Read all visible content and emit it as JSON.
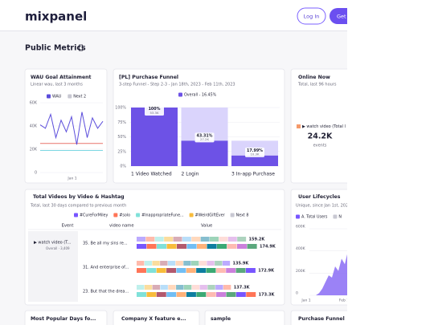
{
  "header": {
    "logo": "mixpanel",
    "login": "Log In",
    "signup": "Get"
  },
  "page_title": "Public Metrics",
  "wau": {
    "title": "WAU Goal Attainment",
    "subtitle": "Linear wau, last 3 months",
    "legend": [
      {
        "name": "WAU",
        "color": "#5b4ddb"
      },
      {
        "name": "Next 2",
        "color": "#c8c8d2"
      }
    ],
    "color": "#5b4ddb",
    "values": [
      41000,
      38000,
      50000,
      30000,
      45000,
      35000,
      48000,
      24000,
      52000,
      30000,
      47000,
      38000,
      44000
    ],
    "reference_lines": [
      {
        "value": 25000,
        "color": "#e8736b"
      },
      {
        "value": 19000,
        "color": "#7dd8e3"
      }
    ],
    "ylim": [
      0,
      60000
    ],
    "yticks": [
      {
        "value": 60000,
        "label": "60K"
      },
      {
        "value": 40000,
        "label": "40K"
      },
      {
        "value": 20000,
        "label": "20K"
      },
      0
    ],
    "x_label": "Jan 1"
  },
  "funnel": {
    "title": "[PL] Purchase Funnel",
    "subtitle": "3-step Funnel - Step 2-3 - Jan 18th, 2023 - Feb 11th, 2023",
    "legend": "Overall - 16.45%",
    "color": "#6d52e6",
    "dropoff_color": "#dad4fc",
    "ylim": [
      0,
      100
    ],
    "yticks": [
      {
        "value": 100,
        "label": "100%"
      },
      {
        "value": 75,
        "label": "75%"
      },
      {
        "value": 50,
        "label": "50%"
      },
      {
        "value": 25,
        "label": "25%"
      },
      {
        "value": 0,
        "label": "0%"
      }
    ],
    "steps": [
      {
        "label": "1 Video Watched",
        "value": 100,
        "value_label": "100%",
        "count": "53.3K"
      },
      {
        "label": "2 Login",
        "value": 43.31,
        "value_label": "43.31%",
        "count": "27.2K"
      },
      {
        "label": "3 In-app Purchase",
        "value": 17.99,
        "value_label": "17.99%",
        "count": "10.3K"
      }
    ]
  },
  "online_now": {
    "title": "Online Now",
    "subtitle": "Total, last 96 hours",
    "legend": "▶ watch video (Total l",
    "legend_color": "#f59a6b",
    "value": "24.2K",
    "unit": "events"
  },
  "videos": {
    "title": "Total Videos by Video & Hashtag",
    "subtitle": "Total, last 30 days compared to previous month",
    "legend": [
      {
        "name": "#CureForMiley",
        "color": "#7856ff"
      },
      {
        "name": "#solo",
        "color": "#ff7557"
      },
      {
        "name": "#InappropriateFune...",
        "color": "#80e1d9"
      },
      {
        "name": "#WeirdGiftEver",
        "color": "#f8bc3b"
      },
      {
        "name": "Next 8",
        "color": "#c8c8d2"
      }
    ],
    "palette": [
      "#7856ff",
      "#ff7557",
      "#80e1d9",
      "#f8bc3b",
      "#b2596e",
      "#72bef4",
      "#ffb27a",
      "#0d7ea0",
      "#3ba974",
      "#febbb2",
      "#cb80dc",
      "#5ba87d"
    ],
    "columns": [
      "Event",
      "video name",
      "Value"
    ],
    "event": "▶ watch video (T...",
    "event_total": "Overall · 3,409",
    "rows": [
      {
        "label": "35. Be all my sins re...",
        "previous": 159200,
        "previous_label": "159.2K",
        "current": 174900,
        "current_label": "174.9K"
      },
      {
        "label": "31. And enterprise of...",
        "previous": 135900,
        "previous_label": "135.9K",
        "current": 172900,
        "current_label": "172.9K"
      },
      {
        "label": "23. But that the drea...",
        "previous": 137300,
        "previous_label": "137.3K",
        "current": 173300,
        "current_label": "173.3K"
      }
    ]
  },
  "lifecycles": {
    "title": "User Lifecycles",
    "subtitle": "Unique, since Jan 1st, 202...",
    "legend": [
      {
        "name": "A. Total Users",
        "color": "#7856ff"
      },
      {
        "name": "N",
        "color": "#c8c8d2"
      }
    ],
    "color": "#8a6cf5",
    "values": [
      0,
      0,
      0,
      20000,
      60000,
      120000,
      180000,
      160000,
      260000,
      220000,
      330000,
      280000,
      400000,
      350000,
      450000
    ],
    "ylim": [
      0,
      600000
    ],
    "yticks": [
      {
        "value": 600000,
        "label": "600K"
      },
      {
        "value": 400000,
        "label": "400K"
      },
      {
        "value": 200000,
        "label": "200K"
      },
      0
    ],
    "xticks": [
      "Jan 1",
      "Feb 1"
    ]
  },
  "more_cards": [
    "Most Popular Days fo...",
    "Company X feature e...",
    "sample",
    "Purchase Funnel"
  ]
}
